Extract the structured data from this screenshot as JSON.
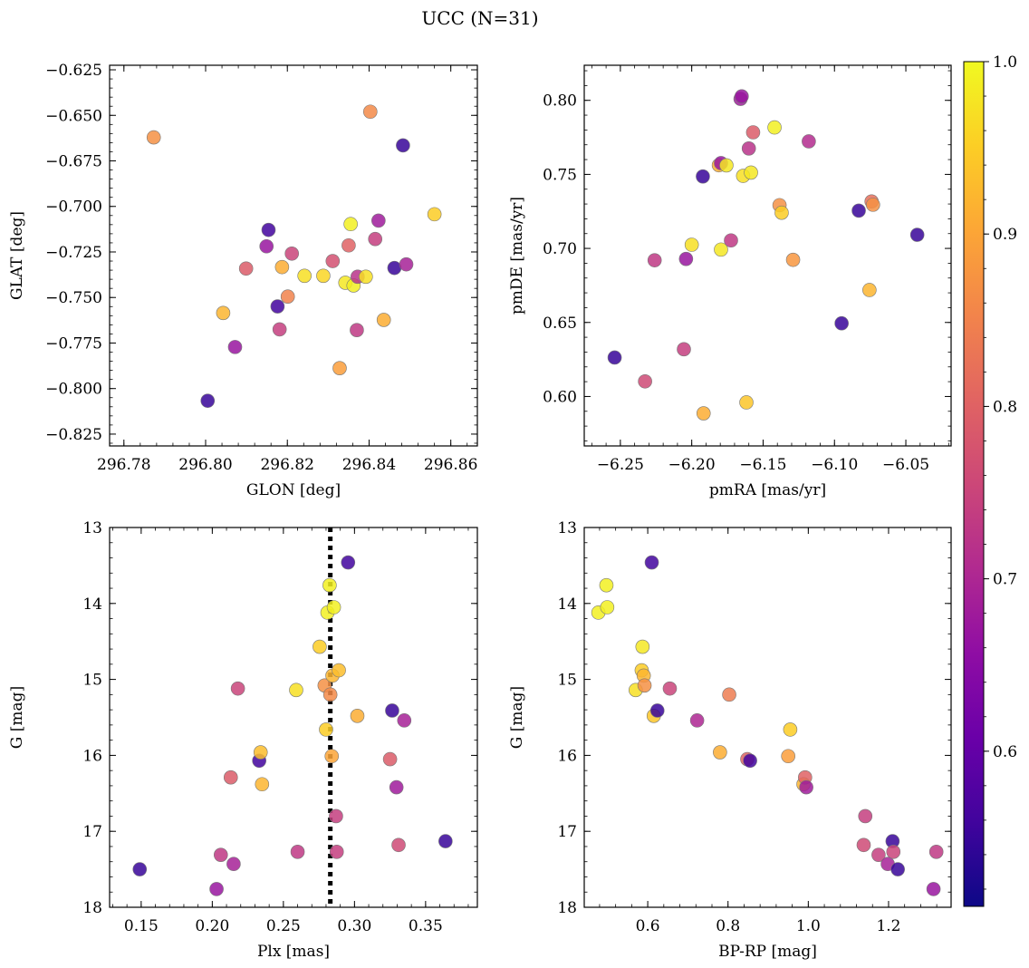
{
  "figure": {
    "title": "UCC (N=31)"
  },
  "colorbar": {
    "colormap": "plasma",
    "range": [
      0.51,
      1.0
    ],
    "ticks": [
      0.6,
      0.7,
      0.8,
      0.9,
      1.0
    ],
    "tick_labels": [
      "0.6",
      "0.7",
      "0.8",
      "0.9",
      "1.0"
    ]
  },
  "chart_data": [
    {
      "type": "scatter",
      "xlabel": "GLON [deg]",
      "ylabel": "GLAT [deg]",
      "xlim": [
        296.7765,
        296.8665
      ],
      "ylim": [
        -0.8315,
        -0.6225
      ],
      "xticks": [
        296.78,
        296.8,
        296.82,
        296.84,
        296.86
      ],
      "xtick_labels": [
        "296.78",
        "296.80",
        "296.82",
        "296.84",
        "296.86"
      ],
      "yticks": [
        -0.825,
        -0.8,
        -0.775,
        -0.75,
        -0.725,
        -0.7,
        -0.675,
        -0.65,
        -0.625
      ],
      "ytick_labels": [
        "−0.825",
        "−0.800",
        "−0.775",
        "−0.750",
        "−0.725",
        "−0.700",
        "−0.675",
        "−0.650",
        "−0.625"
      ],
      "points": [
        {
          "x": 296.7873,
          "y": -0.6621,
          "c": 0.87
        },
        {
          "x": 296.8005,
          "y": -0.8067,
          "c": 0.55
        },
        {
          "x": 296.8043,
          "y": -0.7585,
          "c": 0.92
        },
        {
          "x": 296.8072,
          "y": -0.7772,
          "c": 0.67
        },
        {
          "x": 296.8099,
          "y": -0.7341,
          "c": 0.79
        },
        {
          "x": 296.8149,
          "y": -0.7219,
          "c": 0.67
        },
        {
          "x": 296.8154,
          "y": -0.7129,
          "c": 0.56
        },
        {
          "x": 296.8176,
          "y": -0.7549,
          "c": 0.56
        },
        {
          "x": 296.8181,
          "y": -0.7675,
          "c": 0.74
        },
        {
          "x": 296.8187,
          "y": -0.7333,
          "c": 0.91
        },
        {
          "x": 296.8201,
          "y": -0.7495,
          "c": 0.85
        },
        {
          "x": 296.8211,
          "y": -0.7259,
          "c": 0.75
        },
        {
          "x": 296.8242,
          "y": -0.7381,
          "c": 0.97
        },
        {
          "x": 296.8288,
          "y": -0.7381,
          "c": 0.96
        },
        {
          "x": 296.8311,
          "y": -0.73,
          "c": 0.77
        },
        {
          "x": 296.8328,
          "y": -0.7888,
          "c": 0.89
        },
        {
          "x": 296.8342,
          "y": -0.7419,
          "c": 0.98
        },
        {
          "x": 296.835,
          "y": -0.7214,
          "c": 0.8
        },
        {
          "x": 296.8355,
          "y": -0.7097,
          "c": 0.99
        },
        {
          "x": 296.8362,
          "y": -0.7434,
          "c": 0.99
        },
        {
          "x": 296.837,
          "y": -0.7679,
          "c": 0.73
        },
        {
          "x": 296.8372,
          "y": -0.7386,
          "c": 0.72
        },
        {
          "x": 296.8392,
          "y": -0.7386,
          "c": 0.97
        },
        {
          "x": 296.8403,
          "y": -0.648,
          "c": 0.86
        },
        {
          "x": 296.8415,
          "y": -0.7179,
          "c": 0.74
        },
        {
          "x": 296.8423,
          "y": -0.7078,
          "c": 0.68
        },
        {
          "x": 296.8436,
          "y": -0.7623,
          "c": 0.91
        },
        {
          "x": 296.8462,
          "y": -0.7338,
          "c": 0.55
        },
        {
          "x": 296.8483,
          "y": -0.6665,
          "c": 0.55
        },
        {
          "x": 296.8491,
          "y": -0.7318,
          "c": 0.69
        },
        {
          "x": 296.856,
          "y": -0.7043,
          "c": 0.95
        }
      ]
    },
    {
      "type": "scatter",
      "xlabel": "pmRA [mas/yr]",
      "ylabel": "pmDE [mas/yr]",
      "xlim": [
        -6.2753,
        -6.0183
      ],
      "ylim": [
        0.5666,
        0.8237
      ],
      "xticks": [
        -6.25,
        -6.2,
        -6.15,
        -6.1,
        -6.05
      ],
      "xtick_labels": [
        "−6.25",
        "−6.20",
        "−6.15",
        "−6.10",
        "−6.05"
      ],
      "yticks": [
        0.6,
        0.65,
        0.7,
        0.75,
        0.8
      ],
      "ytick_labels": [
        "0.60",
        "0.65",
        "0.70",
        "0.75",
        "0.80"
      ],
      "points": [
        {
          "x": -6.254,
          "y": 0.6263,
          "c": 0.55
        },
        {
          "x": -6.2327,
          "y": 0.6102,
          "c": 0.76
        },
        {
          "x": -6.226,
          "y": 0.692,
          "c": 0.73
        },
        {
          "x": -6.2055,
          "y": 0.6319,
          "c": 0.74
        },
        {
          "x": -6.204,
          "y": 0.6929,
          "c": 0.67
        },
        {
          "x": -6.2,
          "y": 0.7025,
          "c": 0.97
        },
        {
          "x": -6.1922,
          "y": 0.7486,
          "c": 0.55
        },
        {
          "x": -6.1917,
          "y": 0.5886,
          "c": 0.91
        },
        {
          "x": -6.181,
          "y": 0.7562,
          "c": 0.91
        },
        {
          "x": -6.1795,
          "y": 0.7576,
          "c": 0.67
        },
        {
          "x": -6.1795,
          "y": 0.6992,
          "c": 0.98
        },
        {
          "x": -6.1757,
          "y": 0.7561,
          "c": 0.98
        },
        {
          "x": -6.1725,
          "y": 0.7054,
          "c": 0.73
        },
        {
          "x": -6.1658,
          "y": 0.801,
          "c": 0.68
        },
        {
          "x": -6.165,
          "y": 0.8027,
          "c": 0.67
        },
        {
          "x": -6.164,
          "y": 0.749,
          "c": 0.97
        },
        {
          "x": -6.1617,
          "y": 0.596,
          "c": 0.94
        },
        {
          "x": -6.16,
          "y": 0.7675,
          "c": 0.72
        },
        {
          "x": -6.1585,
          "y": 0.7512,
          "c": 0.98
        },
        {
          "x": -6.157,
          "y": 0.7784,
          "c": 0.79
        },
        {
          "x": -6.142,
          "y": 0.7817,
          "c": 0.99
        },
        {
          "x": -6.1385,
          "y": 0.7292,
          "c": 0.87
        },
        {
          "x": -6.137,
          "y": 0.7241,
          "c": 0.95
        },
        {
          "x": -6.129,
          "y": 0.6923,
          "c": 0.88
        },
        {
          "x": -6.118,
          "y": 0.7723,
          "c": 0.71
        },
        {
          "x": -6.095,
          "y": 0.6494,
          "c": 0.55
        },
        {
          "x": -6.083,
          "y": 0.7255,
          "c": 0.55
        },
        {
          "x": -6.0755,
          "y": 0.6719,
          "c": 0.92
        },
        {
          "x": -6.074,
          "y": 0.7317,
          "c": 0.82
        },
        {
          "x": -6.073,
          "y": 0.7295,
          "c": 0.87
        },
        {
          "x": -6.042,
          "y": 0.7092,
          "c": 0.55
        }
      ]
    },
    {
      "type": "scatter",
      "xlabel": "Plx [mas]",
      "ylabel": "G [mag]",
      "xlim": [
        0.1278,
        0.3864
      ],
      "ylim": [
        18.0,
        13.0
      ],
      "invert_y": true,
      "xticks": [
        0.15,
        0.2,
        0.25,
        0.3,
        0.35
      ],
      "xtick_labels": [
        "0.15",
        "0.20",
        "0.25",
        "0.30",
        "0.35"
      ],
      "yticks": [
        13,
        14,
        15,
        16,
        17,
        18
      ],
      "ytick_labels": [
        "13",
        "14",
        "15",
        "16",
        "17",
        "18"
      ],
      "vline": {
        "x": 0.283,
        "style": "dotted"
      },
      "points": [
        {
          "x": 0.149,
          "y": 17.5,
          "c": 0.55
        },
        {
          "x": 0.203,
          "y": 17.76,
          "c": 0.67
        },
        {
          "x": 0.206,
          "y": 17.31,
          "c": 0.73
        },
        {
          "x": 0.213,
          "y": 16.29,
          "c": 0.79
        },
        {
          "x": 0.215,
          "y": 17.43,
          "c": 0.69
        },
        {
          "x": 0.218,
          "y": 15.12,
          "c": 0.75
        },
        {
          "x": 0.233,
          "y": 16.07,
          "c": 0.56
        },
        {
          "x": 0.234,
          "y": 15.96,
          "c": 0.93
        },
        {
          "x": 0.235,
          "y": 16.38,
          "c": 0.92
        },
        {
          "x": 0.259,
          "y": 15.14,
          "c": 0.97
        },
        {
          "x": 0.26,
          "y": 17.27,
          "c": 0.73
        },
        {
          "x": 0.2755,
          "y": 14.57,
          "c": 0.95
        },
        {
          "x": 0.279,
          "y": 15.08,
          "c": 0.87
        },
        {
          "x": 0.28,
          "y": 15.66,
          "c": 0.95
        },
        {
          "x": 0.281,
          "y": 14.12,
          "c": 0.99
        },
        {
          "x": 0.2825,
          "y": 13.76,
          "c": 0.99
        },
        {
          "x": 0.283,
          "y": 15.2,
          "c": 0.86
        },
        {
          "x": 0.284,
          "y": 16.01,
          "c": 0.9
        },
        {
          "x": 0.2845,
          "y": 14.95,
          "c": 0.92
        },
        {
          "x": 0.2855,
          "y": 14.05,
          "c": 0.99
        },
        {
          "x": 0.287,
          "y": 16.8,
          "c": 0.74
        },
        {
          "x": 0.2875,
          "y": 17.27,
          "c": 0.74
        },
        {
          "x": 0.289,
          "y": 14.88,
          "c": 0.93
        },
        {
          "x": 0.2955,
          "y": 13.46,
          "c": 0.56
        },
        {
          "x": 0.302,
          "y": 15.48,
          "c": 0.91
        },
        {
          "x": 0.325,
          "y": 16.05,
          "c": 0.79
        },
        {
          "x": 0.3265,
          "y": 15.41,
          "c": 0.55
        },
        {
          "x": 0.3295,
          "y": 16.42,
          "c": 0.68
        },
        {
          "x": 0.331,
          "y": 17.18,
          "c": 0.76
        },
        {
          "x": 0.335,
          "y": 15.54,
          "c": 0.69
        },
        {
          "x": 0.364,
          "y": 17.13,
          "c": 0.55
        }
      ]
    },
    {
      "type": "scatter",
      "xlabel": "BP-RP [mag]",
      "ylabel": "G [mag]",
      "xlim": [
        0.4418,
        1.3558
      ],
      "ylim": [
        18.0,
        13.0
      ],
      "invert_y": true,
      "xticks": [
        0.6,
        0.8,
        1.0,
        1.2
      ],
      "xtick_labels": [
        "0.6",
        "0.8",
        "1.0",
        "1.2"
      ],
      "yticks": [
        13,
        14,
        15,
        16,
        17,
        18
      ],
      "ytick_labels": [
        "13",
        "14",
        "15",
        "16",
        "17",
        "18"
      ],
      "points": [
        {
          "x": 0.477,
          "y": 14.12,
          "c": 0.99
        },
        {
          "x": 0.497,
          "y": 13.76,
          "c": 0.99
        },
        {
          "x": 0.499,
          "y": 14.05,
          "c": 0.99
        },
        {
          "x": 0.57,
          "y": 15.14,
          "c": 0.97
        },
        {
          "x": 0.585,
          "y": 14.88,
          "c": 0.95
        },
        {
          "x": 0.587,
          "y": 14.57,
          "c": 0.98
        },
        {
          "x": 0.59,
          "y": 14.95,
          "c": 0.92
        },
        {
          "x": 0.592,
          "y": 15.08,
          "c": 0.87
        },
        {
          "x": 0.61,
          "y": 13.46,
          "c": 0.56
        },
        {
          "x": 0.615,
          "y": 15.48,
          "c": 0.94
        },
        {
          "x": 0.624,
          "y": 15.41,
          "c": 0.55
        },
        {
          "x": 0.655,
          "y": 15.12,
          "c": 0.75
        },
        {
          "x": 0.723,
          "y": 15.54,
          "c": 0.7
        },
        {
          "x": 0.78,
          "y": 15.96,
          "c": 0.91
        },
        {
          "x": 0.803,
          "y": 15.2,
          "c": 0.84
        },
        {
          "x": 0.848,
          "y": 16.05,
          "c": 0.8
        },
        {
          "x": 0.855,
          "y": 16.07,
          "c": 0.56
        },
        {
          "x": 0.95,
          "y": 16.01,
          "c": 0.89
        },
        {
          "x": 0.955,
          "y": 15.66,
          "c": 0.95
        },
        {
          "x": 0.988,
          "y": 16.38,
          "c": 0.92
        },
        {
          "x": 0.992,
          "y": 16.29,
          "c": 0.8
        },
        {
          "x": 0.995,
          "y": 16.42,
          "c": 0.68
        },
        {
          "x": 1.138,
          "y": 17.18,
          "c": 0.76
        },
        {
          "x": 1.142,
          "y": 16.8,
          "c": 0.74
        },
        {
          "x": 1.175,
          "y": 17.31,
          "c": 0.74
        },
        {
          "x": 1.198,
          "y": 17.43,
          "c": 0.69
        },
        {
          "x": 1.21,
          "y": 17.13,
          "c": 0.55
        },
        {
          "x": 1.212,
          "y": 17.27,
          "c": 0.75
        },
        {
          "x": 1.223,
          "y": 17.5,
          "c": 0.55
        },
        {
          "x": 1.312,
          "y": 17.76,
          "c": 0.67
        },
        {
          "x": 1.319,
          "y": 17.27,
          "c": 0.73
        }
      ]
    }
  ]
}
